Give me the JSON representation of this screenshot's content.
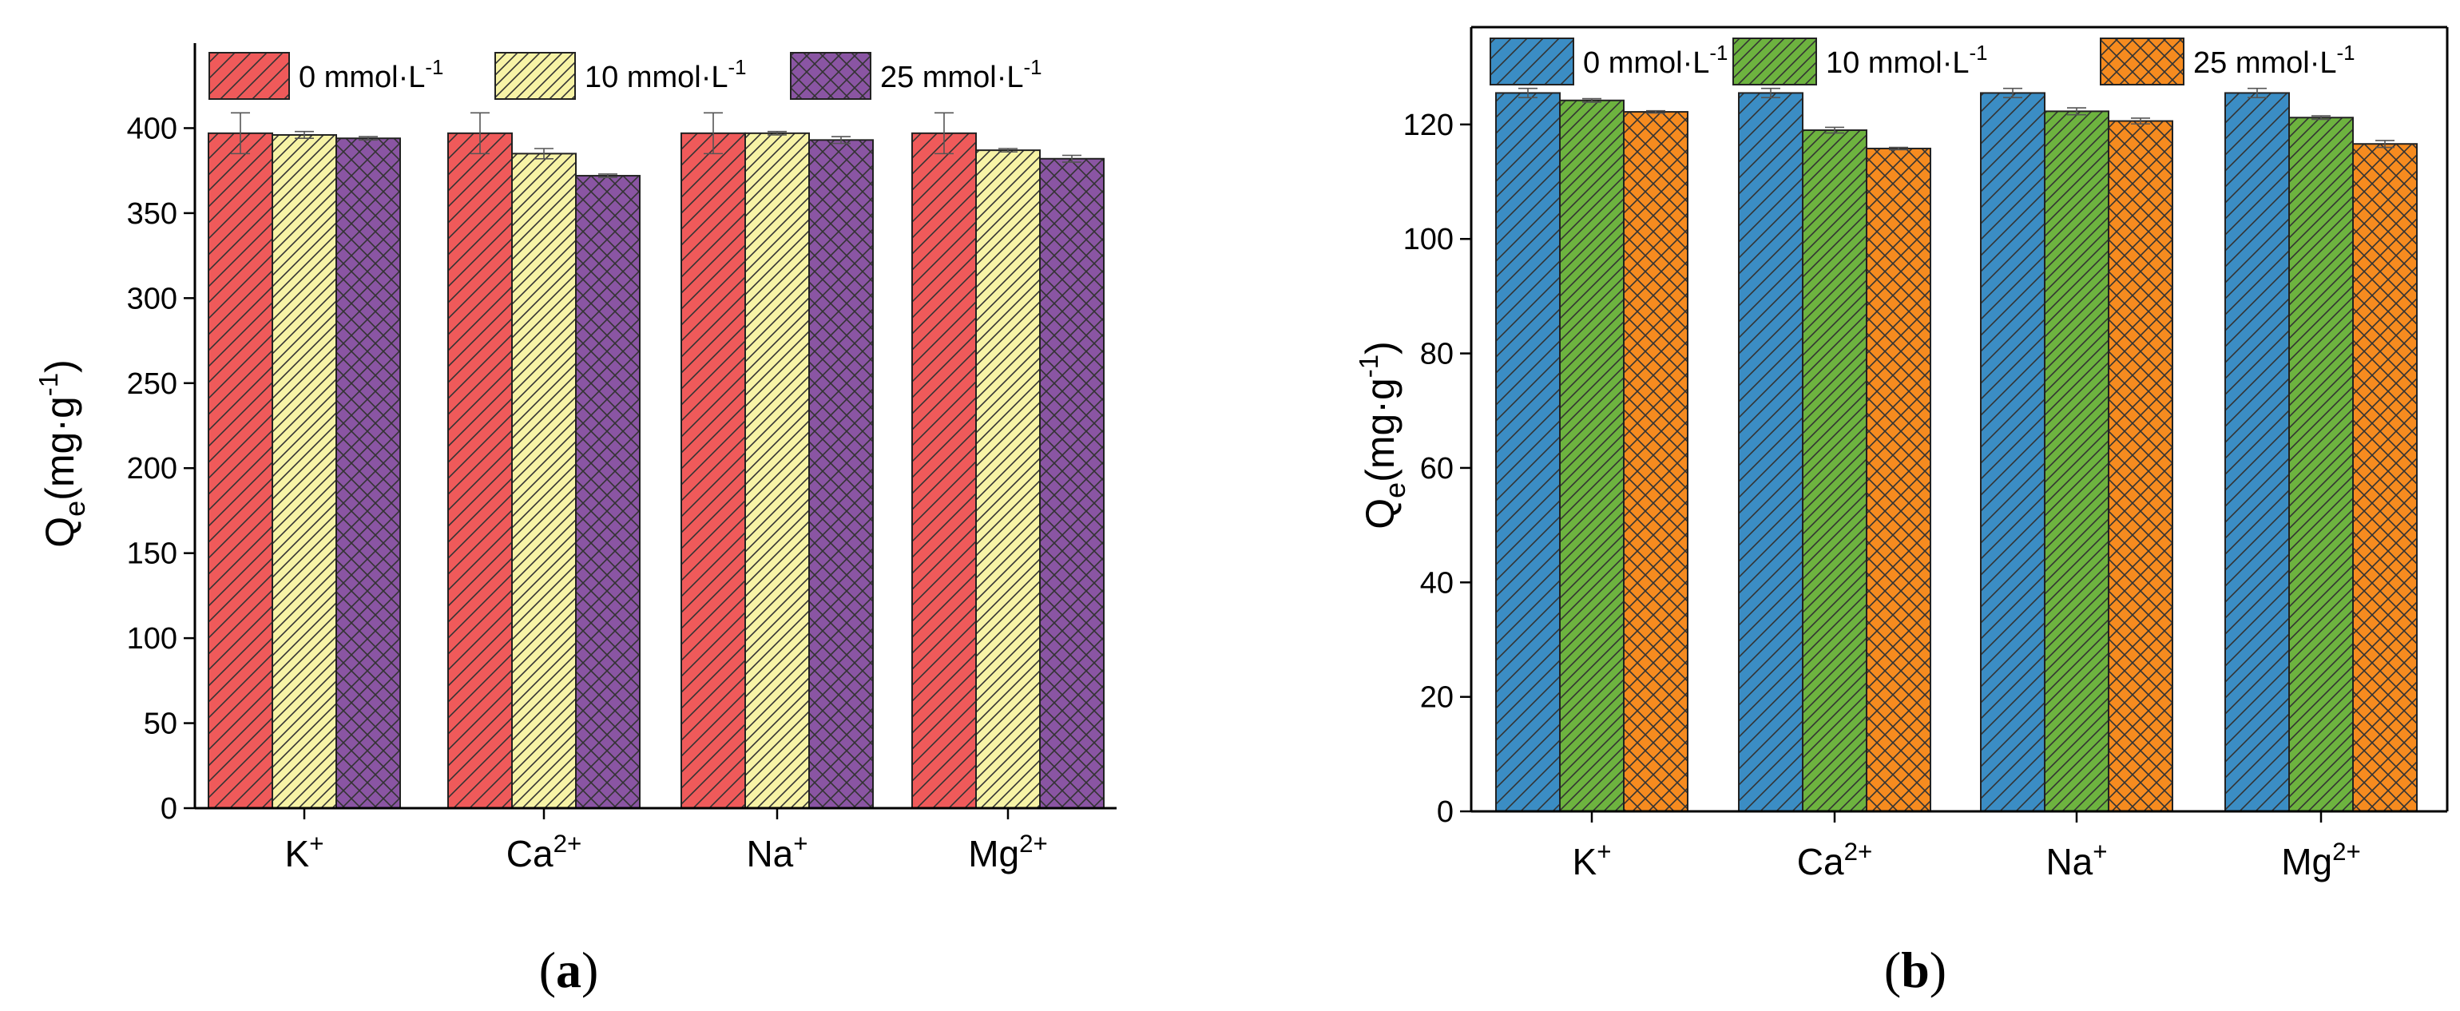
{
  "figure": {
    "panels": [
      {
        "label_open": "(",
        "label_letter": "a",
        "label_close": ")"
      },
      {
        "label_open": "(",
        "label_letter": "b",
        "label_close": ")"
      }
    ]
  },
  "chart_data": [
    {
      "type": "bar",
      "title": "",
      "xlabel": "",
      "ylabel": {
        "main": "Q",
        "sub": "e",
        "unit_open": "(mg·g",
        "unit_sup": "-1",
        "unit_close": ")"
      },
      "ylim": [
        0,
        450
      ],
      "yticks": [
        0,
        50,
        100,
        150,
        200,
        250,
        300,
        350,
        400
      ],
      "grid": false,
      "legend_position": "top",
      "categories": [
        {
          "base": "K",
          "sup": "+"
        },
        {
          "base": "Ca",
          "sup": "2+"
        },
        {
          "base": "Na",
          "sup": "+"
        },
        {
          "base": "Mg",
          "sup": "2+"
        }
      ],
      "series": [
        {
          "name": "0 mmol·L",
          "name_sup": "-1",
          "color": "#EF5A5A",
          "pattern": "diag",
          "values": [
            397,
            397,
            397,
            397
          ],
          "errors": [
            12,
            12,
            12,
            12
          ]
        },
        {
          "name": "10 mmol·L",
          "name_sup": "-1",
          "color": "#F7F3A6",
          "pattern": "diag-dense",
          "values": [
            396,
            385,
            397,
            387
          ],
          "errors": [
            2,
            3,
            1,
            1
          ]
        },
        {
          "name": "25 mmol·L",
          "name_sup": "-1",
          "color": "#8A55A3",
          "pattern": "cross",
          "values": [
            394,
            372,
            393,
            382
          ],
          "errors": [
            1,
            1,
            2,
            2
          ]
        }
      ]
    },
    {
      "type": "bar",
      "title": "",
      "xlabel": "",
      "ylabel": {
        "main": "Q",
        "sub": "e",
        "unit_open": "(mg·g",
        "unit_sup": "-1",
        "unit_close": ")"
      },
      "ylim": [
        0,
        137
      ],
      "yticks": [
        0,
        20,
        40,
        60,
        80,
        100,
        120
      ],
      "grid": false,
      "legend_position": "top",
      "categories": [
        {
          "base": "K",
          "sup": "+"
        },
        {
          "base": "Ca",
          "sup": "2+"
        },
        {
          "base": "Na",
          "sup": "+"
        },
        {
          "base": "Mg",
          "sup": "2+"
        }
      ],
      "series": [
        {
          "name": "0 mmol·L",
          "name_sup": "-1",
          "color": "#3B8DC4",
          "pattern": "diag",
          "values": [
            125.5,
            125.5,
            125.5,
            125.5
          ],
          "errors": [
            0.8,
            0.8,
            0.8,
            0.8
          ]
        },
        {
          "name": "10 mmol·L",
          "name_sup": "-1",
          "color": "#6DB33F",
          "pattern": "diag-dense",
          "values": [
            124.2,
            119,
            122.3,
            121.2
          ],
          "errors": [
            0.3,
            0.5,
            0.6,
            0.3
          ]
        },
        {
          "name": "25 mmol·L",
          "name_sup": "-1",
          "color": "#F68B1F",
          "pattern": "cross",
          "values": [
            122.2,
            115.8,
            120.6,
            116.6
          ],
          "errors": [
            0.2,
            0.2,
            0.5,
            0.6
          ]
        }
      ]
    }
  ]
}
